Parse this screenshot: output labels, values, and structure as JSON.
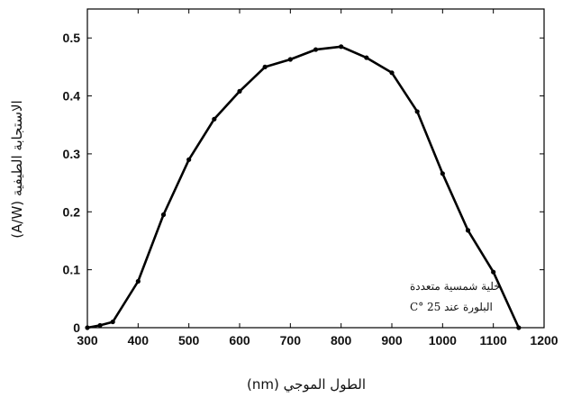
{
  "chart_data": {
    "type": "line",
    "title": "",
    "xlabel": "الطول الموجي (nm)",
    "ylabel": "الاستجابة الطيفية (A/W)",
    "xlim": [
      300,
      1200
    ],
    "ylim": [
      0,
      0.55
    ],
    "x_ticks": [
      300,
      400,
      500,
      600,
      700,
      800,
      900,
      1000,
      1100,
      1200
    ],
    "y_ticks": [
      0,
      0.1,
      0.2,
      0.3,
      0.4,
      0.5
    ],
    "x_tick_labels": [
      "300",
      "400",
      "500",
      "600",
      "700",
      "800",
      "900",
      "1000",
      "1100",
      "1200"
    ],
    "y_tick_labels": [
      "0",
      "0.1",
      "0.2",
      "0.3",
      "0.4",
      "0.5"
    ],
    "grid": false,
    "series": [
      {
        "x": [
          300,
          325,
          350,
          400,
          450,
          500,
          550,
          600,
          650,
          700,
          750,
          800,
          850,
          900,
          950,
          1000,
          1050,
          1100,
          1150
        ],
        "y": [
          0.0,
          0.004,
          0.01,
          0.08,
          0.195,
          0.29,
          0.36,
          0.408,
          0.45,
          0.463,
          0.48,
          0.485,
          0.466,
          0.44,
          0.373,
          0.266,
          0.168,
          0.096,
          0.0
        ],
        "color": "#000000",
        "marker": "dot"
      }
    ],
    "annotation": {
      "line1": "خلية شمسية متعددة",
      "line2": "البلورة عند 25 °C"
    }
  }
}
